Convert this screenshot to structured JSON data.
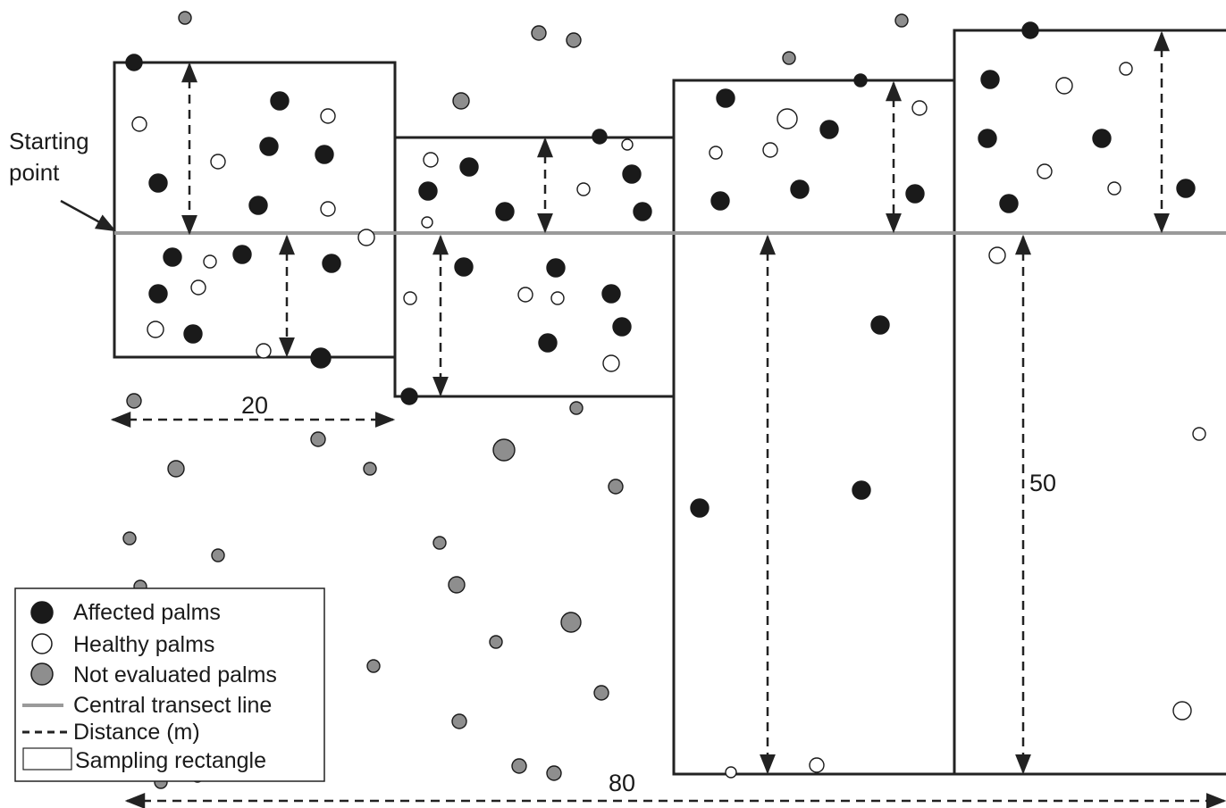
{
  "labels": {
    "start_line1": "Starting",
    "start_line2": "point",
    "width_20": "20",
    "height_50": "50",
    "length_80": "80"
  },
  "legend": {
    "affected": "Affected palms",
    "healthy": "Healthy palms",
    "not_evaluated": "Not evaluated palms",
    "transect": "Central transect line",
    "distance": "Distance (m)",
    "rectangle": "Sampling rectangle"
  },
  "colors": {
    "affected": "#1a1a1a",
    "healthy": "#ffffff",
    "not_evaluated": "#8e8e8e",
    "transect": "#9a9a9a",
    "outline": "#222222"
  }
}
